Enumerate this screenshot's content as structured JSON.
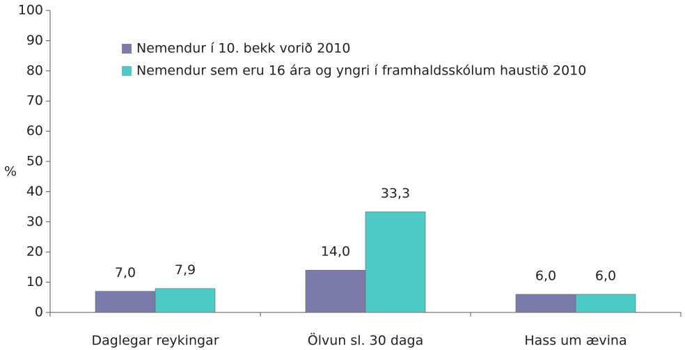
{
  "chart_data": {
    "type": "bar",
    "y_label": "%",
    "categories": [
      "Daglegar reykingar",
      "Ölvun sl. 30 daga",
      "Hass um ævina"
    ],
    "series": [
      {
        "name": "Nemendur í 10. bekk vorið 2010",
        "color": "#7b7bab",
        "values": [
          7.0,
          14.0,
          6.0
        ],
        "value_labels": [
          "7,0",
          "14,0",
          "6,0"
        ]
      },
      {
        "name": "Nemendur sem eru 16 ára og yngri í framhaldsskólum haustið 2010",
        "color": "#4fc8c8",
        "values": [
          7.9,
          33.3,
          6.0
        ],
        "value_labels": [
          "7,9",
          "33,3",
          "6,0"
        ]
      }
    ],
    "ylim": [
      0,
      100
    ],
    "yticks": [
      0,
      10,
      20,
      30,
      40,
      50,
      60,
      70,
      80,
      90,
      100
    ],
    "grid": false,
    "legend": "top"
  }
}
